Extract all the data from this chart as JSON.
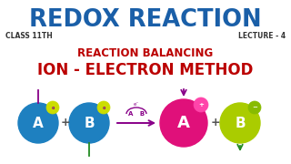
{
  "bg_color": "#ffffff",
  "title_text": "REDOX REACTION",
  "title_color": "#1a5fa8",
  "subtitle_left": "CLASS 11TH",
  "subtitle_right": "LECTURE - 4",
  "subtitle_color": "#333333",
  "line2_text": "REACTION BALANCING",
  "line2_color": "#bb0000",
  "line3_text": "ION - ELECTRON METHOD",
  "line3_color": "#bb0000",
  "circle1_color": "#1e80c0",
  "circle2_color": "#1e80c0",
  "circle3_color": "#e0107a",
  "circle4_color": "#aacc00",
  "arrow_color": "#880088",
  "plus_color": "#555555",
  "tick_top_color": "#880088",
  "tick_bottom_color": "#228B22"
}
